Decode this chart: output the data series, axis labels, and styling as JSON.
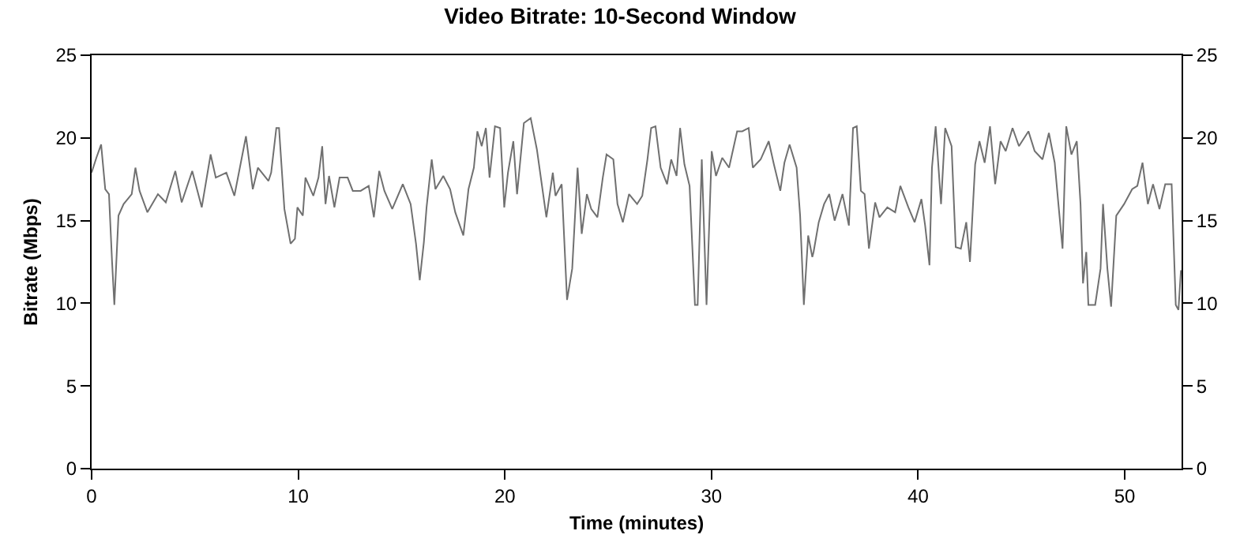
{
  "chart_data": {
    "type": "line",
    "title": "Video Bitrate: 10-Second Window",
    "xlabel": "Time (minutes)",
    "ylabel": "Bitrate (Mbps)",
    "xlim": [
      0,
      52.75
    ],
    "xticks": [
      0,
      10,
      20,
      30,
      40,
      50
    ],
    "ylim": [
      0,
      25
    ],
    "yticks": [
      0,
      5,
      10,
      15,
      20,
      25
    ],
    "y2lim": [
      0,
      25
    ],
    "y2ticks": [
      0,
      5,
      10,
      15,
      20,
      25
    ],
    "grid": false,
    "marker": "none",
    "line_style": "solid",
    "series": [
      {
        "color": "#707070",
        "x": [
          0,
          0.23,
          0.46,
          0.66,
          0.84,
          0.99,
          1.1,
          1.3,
          1.55,
          1.94,
          2.12,
          2.32,
          2.7,
          3.21,
          3.59,
          4.05,
          4.36,
          4.87,
          5.33,
          5.76,
          6.01,
          6.52,
          6.91,
          7.47,
          7.8,
          8.05,
          8.56,
          8.69,
          8.94,
          9.07,
          9.33,
          9.63,
          9.84,
          9.96,
          10.22,
          10.35,
          10.73,
          10.98,
          11.16,
          11.32,
          11.49,
          11.75,
          12.0,
          12.39,
          12.64,
          13.02,
          13.41,
          13.66,
          13.92,
          14.17,
          14.55,
          15.06,
          15.44,
          15.7,
          15.88,
          16.08,
          16.21,
          16.46,
          16.64,
          17.02,
          17.35,
          17.6,
          17.99,
          18.24,
          18.5,
          18.67,
          18.88,
          19.08,
          19.26,
          19.52,
          19.77,
          19.97,
          20.15,
          20.41,
          20.59,
          20.92,
          21.25,
          21.55,
          22.01,
          22.32,
          22.45,
          22.75,
          23.01,
          23.26,
          23.52,
          23.72,
          23.97,
          24.18,
          24.48,
          24.74,
          24.92,
          25.25,
          25.45,
          25.71,
          26.01,
          26.4,
          26.65,
          26.9,
          27.08,
          27.29,
          27.54,
          27.85,
          28.05,
          28.31,
          28.48,
          28.69,
          28.94,
          29.2,
          29.33,
          29.53,
          29.76,
          30.01,
          30.22,
          30.52,
          30.85,
          31.24,
          31.49,
          31.8,
          32.0,
          32.38,
          32.77,
          33.02,
          33.33,
          33.53,
          33.78,
          34.12,
          34.29,
          34.47,
          34.68,
          34.88,
          34.94,
          35.19,
          35.45,
          35.7,
          35.96,
          36.34,
          36.65,
          36.85,
          37.03,
          37.23,
          37.41,
          37.62,
          37.92,
          38.13,
          38.51,
          38.89,
          39.14,
          39.53,
          39.83,
          40.16,
          40.34,
          40.55,
          40.67,
          40.85,
          41.11,
          41.31,
          41.62,
          41.82,
          42.07,
          42.33,
          42.51,
          42.76,
          42.97,
          43.22,
          43.48,
          43.73,
          43.99,
          44.24,
          44.57,
          44.88,
          45.34,
          45.64,
          46.02,
          46.33,
          46.61,
          46.79,
          46.99,
          47.17,
          47.42,
          47.68,
          47.86,
          47.98,
          48.14,
          48.24,
          48.57,
          48.83,
          48.95,
          49.16,
          49.34,
          49.59,
          49.97,
          50.36,
          50.61,
          50.86,
          51.12,
          51.37,
          51.68,
          51.96,
          52.27,
          52.47,
          52.6,
          52.72
        ],
        "values": [
          17.9,
          18.8,
          19.6,
          16.9,
          16.6,
          12.5,
          9.9,
          15.3,
          16,
          16.6,
          18.2,
          16.8,
          15.5,
          16.6,
          16.1,
          18,
          16.1,
          18,
          15.8,
          19,
          17.6,
          17.9,
          16.5,
          20.1,
          16.9,
          18.2,
          17.4,
          17.9,
          20.6,
          20.6,
          15.7,
          13.6,
          13.9,
          15.8,
          15.3,
          17.6,
          16.5,
          17.6,
          19.5,
          16,
          17.7,
          15.8,
          17.6,
          17.6,
          16.8,
          16.8,
          17.1,
          15.2,
          18,
          16.8,
          15.7,
          17.2,
          16,
          13.6,
          11.4,
          13.7,
          15.8,
          18.7,
          16.9,
          17.7,
          16.9,
          15.5,
          14.1,
          16.9,
          18.2,
          20.4,
          19.5,
          20.6,
          17.6,
          20.7,
          20.6,
          15.8,
          17.9,
          19.8,
          16.6,
          20.9,
          21.2,
          19.3,
          15.2,
          17.9,
          16.5,
          17.2,
          10.2,
          12.1,
          18.2,
          14.2,
          16.6,
          15.7,
          15.2,
          17.6,
          19,
          18.7,
          16,
          14.9,
          16.6,
          16,
          16.5,
          18.7,
          20.6,
          20.7,
          18.2,
          17.2,
          18.7,
          17.7,
          20.6,
          18.4,
          17.1,
          9.9,
          9.9,
          18.7,
          9.9,
          19.2,
          17.7,
          18.8,
          18.2,
          20.4,
          20.4,
          20.6,
          18.2,
          18.7,
          19.8,
          18.4,
          16.8,
          18.5,
          19.6,
          18.2,
          15.3,
          9.9,
          14.1,
          12.8,
          13.1,
          14.9,
          16,
          16.6,
          15,
          16.6,
          14.7,
          20.6,
          20.7,
          16.8,
          16.6,
          13.3,
          16.1,
          15.2,
          15.8,
          15.5,
          17.1,
          15.8,
          14.9,
          16.3,
          14.7,
          12.3,
          18.2,
          20.7,
          16,
          20.6,
          19.5,
          13.4,
          13.3,
          14.9,
          12.5,
          18.4,
          19.8,
          18.5,
          20.7,
          17.2,
          19.8,
          19.2,
          20.6,
          19.5,
          20.4,
          19.2,
          18.7,
          20.3,
          18.5,
          16,
          13.3,
          20.7,
          19,
          19.8,
          16,
          11.2,
          13.1,
          9.9,
          9.9,
          12.1,
          16,
          12.1,
          9.8,
          15.3,
          16,
          16.9,
          17.1,
          18.5,
          16,
          17.2,
          15.7,
          17.2,
          17.2,
          9.9,
          9.6,
          12
        ]
      }
    ]
  }
}
